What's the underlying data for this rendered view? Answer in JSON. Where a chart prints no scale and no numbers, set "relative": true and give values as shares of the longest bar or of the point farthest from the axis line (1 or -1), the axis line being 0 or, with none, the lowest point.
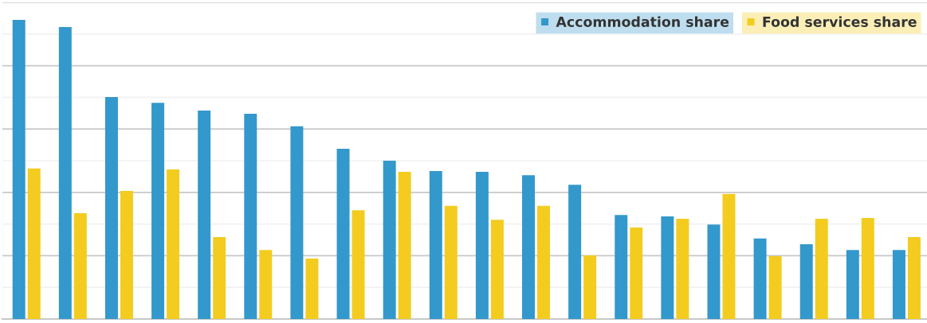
{
  "chart_data": {
    "type": "bar",
    "relative": true,
    "categories": [
      null,
      null,
      null,
      null,
      null,
      null,
      null,
      null,
      null,
      null,
      null,
      null,
      null,
      null,
      null,
      null,
      null,
      null,
      null,
      null
    ],
    "series": [
      {
        "name": "Accommodation share",
        "color": "#3398cc",
        "values": [
          1.0,
          0.976,
          0.742,
          0.723,
          0.697,
          0.686,
          0.644,
          0.569,
          0.529,
          0.495,
          0.492,
          0.481,
          0.449,
          0.348,
          0.343,
          0.316,
          0.269,
          0.25,
          0.231,
          0.231
        ]
      },
      {
        "name": "Food services share",
        "color": "#f3cc1f",
        "values": [
          0.503,
          0.354,
          0.428,
          0.5,
          0.274,
          0.231,
          0.202,
          0.364,
          0.492,
          0.378,
          0.332,
          0.378,
          0.213,
          0.306,
          0.335,
          0.418,
          0.21,
          0.335,
          0.338,
          0.274
        ]
      }
    ],
    "grid": "y",
    "legend": "top right"
  }
}
